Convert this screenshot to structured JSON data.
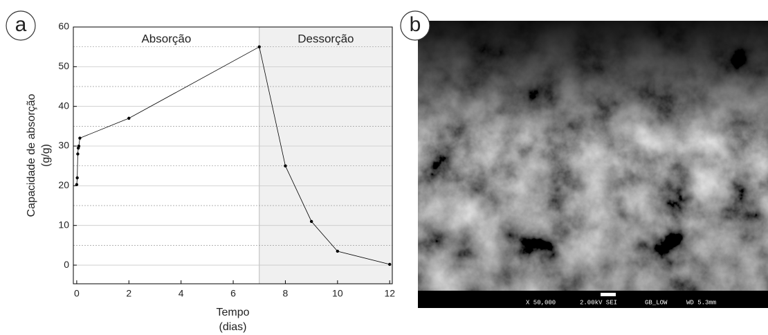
{
  "panel_labels": [
    "a",
    "b"
  ],
  "chart_data": {
    "type": "line",
    "xlabel": [
      "Tempo",
      "(dias)"
    ],
    "ylabel": [
      "Capacidade de absorção",
      "(g/g)"
    ],
    "regions": [
      {
        "label": "Absorção",
        "xlim": [
          -0.13,
          7
        ]
      },
      {
        "label": "Dessorção",
        "xlim": [
          7,
          12.1
        ],
        "color": "#f0f0f0"
      }
    ],
    "x": [
      0,
      0.02,
      0.04,
      0.06,
      0.08,
      0.12,
      2,
      7,
      8,
      9,
      10,
      12
    ],
    "series": [
      {
        "color": "#000000",
        "values": [
          20.3,
          22,
          28,
          29.5,
          30,
          32,
          37,
          55,
          25,
          11,
          3.5,
          0.2
        ]
      }
    ],
    "xlim": [
      -0.13,
      12.1
    ],
    "ylim": [
      -4.7,
      60
    ],
    "xticks": [
      0,
      2,
      4,
      6,
      8,
      10,
      12
    ],
    "yticks": [
      0,
      10,
      20,
      30,
      40,
      50,
      60
    ],
    "minor_yticks": [
      5,
      15,
      25,
      35,
      45,
      55
    ],
    "grid": true
  },
  "image": {
    "info_bar": [
      "X 50,000",
      "2.00kV SEI",
      "GB_LOW",
      "WD 5.3mm"
    ]
  }
}
